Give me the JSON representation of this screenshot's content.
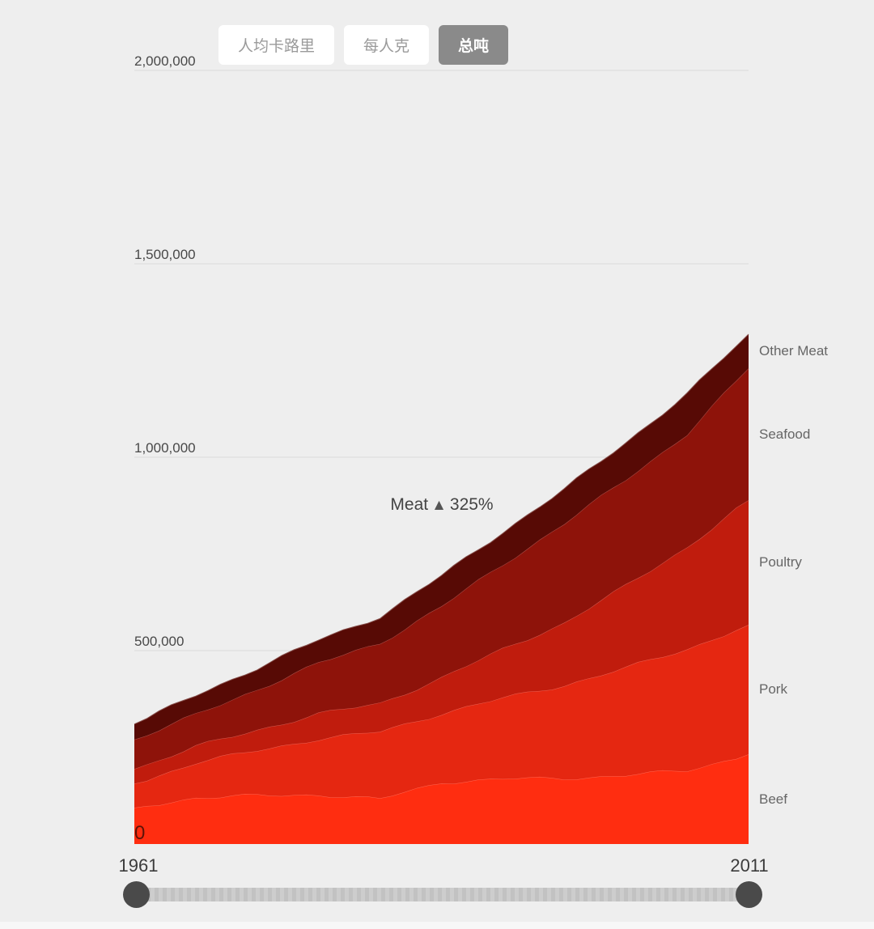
{
  "page": {
    "background": "#eeeeee"
  },
  "unit_toggle": {
    "options": [
      {
        "label": "人均卡路里",
        "selected": false
      },
      {
        "label": "每人克",
        "selected": false
      },
      {
        "label": "总吨",
        "selected": true
      }
    ]
  },
  "chart_data": {
    "type": "area",
    "stacked": true,
    "stack_order": "bottom-to-top",
    "title": "",
    "xlabel": "",
    "ylabel": "",
    "x": [
      1961,
      1966,
      1971,
      1976,
      1981,
      1986,
      1991,
      1996,
      2001,
      2006,
      2011
    ],
    "xlim": [
      1961,
      2011
    ],
    "ylim": [
      0,
      2000000
    ],
    "grid": true,
    "gridline_color": "#dadada",
    "legend_position": "right",
    "y_ticks": [
      {
        "label": "2,000,000",
        "value": 2000000
      },
      {
        "label": "1,500,000",
        "value": 1500000
      },
      {
        "label": "1,000,000",
        "value": 1000000
      },
      {
        "label": "500,000",
        "value": 500000
      },
      {
        "label": "0",
        "value": 0
      }
    ],
    "series": [
      {
        "name": "Beef",
        "color": "#ff2d10",
        "values": [
          94000,
          120000,
          125000,
          128000,
          116000,
          160000,
          168000,
          170000,
          178000,
          190000,
          232000
        ]
      },
      {
        "name": "Pork",
        "color": "#e52711",
        "values": [
          62000,
          90000,
          117000,
          144000,
          174000,
          178000,
          209000,
          241000,
          277000,
          314000,
          335000
        ]
      },
      {
        "name": "Poultry",
        "color": "#c01c0d",
        "values": [
          38000,
          42000,
          53000,
          65000,
          73000,
          92000,
          126000,
          161000,
          212000,
          264000,
          322000
        ]
      },
      {
        "name": "Seafood",
        "color": "#8e130a",
        "values": [
          76000,
          82000,
          105000,
          130000,
          157000,
          184000,
          220000,
          257000,
          275000,
          293000,
          341000
        ]
      },
      {
        "name": "Other Meat",
        "color": "#570a05",
        "values": [
          40000,
          50000,
          55000,
          60000,
          68000,
          79000,
          84000,
          88000,
          96000,
          103000,
          88000
        ]
      }
    ],
    "annotation": {
      "label": "Meat",
      "symbol": "▲",
      "value": "325%"
    }
  },
  "slider": {
    "start_label": "1961",
    "end_label": "2011"
  }
}
